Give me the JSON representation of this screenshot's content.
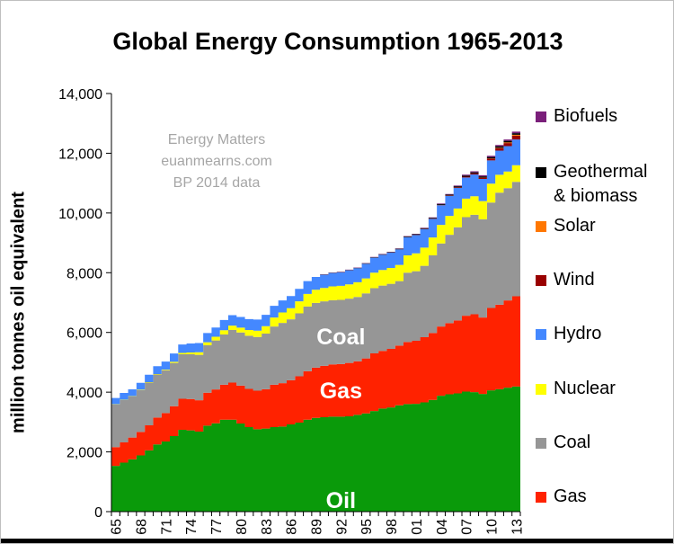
{
  "chart_data": {
    "type": "area",
    "stacked": true,
    "title": "Global Energy Consumption 1965-2013",
    "ylabel": "million tonnes oil equivalent",
    "xlabel": "",
    "ylim": [
      0,
      14000
    ],
    "yticks": [
      0,
      2000,
      4000,
      6000,
      8000,
      10000,
      12000,
      14000
    ],
    "ytick_labels": [
      "0",
      "2,000",
      "4,000",
      "6,000",
      "8,000",
      "10,000",
      "12,000",
      "14,000"
    ],
    "x": [
      1965,
      1966,
      1967,
      1968,
      1969,
      1970,
      1971,
      1972,
      1973,
      1974,
      1975,
      1976,
      1977,
      1978,
      1979,
      1980,
      1981,
      1982,
      1983,
      1984,
      1985,
      1986,
      1987,
      1988,
      1989,
      1990,
      1991,
      1992,
      1993,
      1994,
      1995,
      1996,
      1997,
      1998,
      1999,
      2000,
      2001,
      2002,
      2003,
      2004,
      2005,
      2006,
      2007,
      2008,
      2009,
      2010,
      2011,
      2012,
      2013
    ],
    "xtick_labels": [
      {
        "year": 1965,
        "label": "65"
      },
      {
        "year": 1968,
        "label": "68"
      },
      {
        "year": 1971,
        "label": "71"
      },
      {
        "year": 1974,
        "label": "74"
      },
      {
        "year": 1977,
        "label": "77"
      },
      {
        "year": 1980,
        "label": "80"
      },
      {
        "year": 1983,
        "label": "83"
      },
      {
        "year": 1986,
        "label": "86"
      },
      {
        "year": 1989,
        "label": "89"
      },
      {
        "year": 1992,
        "label": "92"
      },
      {
        "year": 1995,
        "label": "95"
      },
      {
        "year": 1998,
        "label": "98"
      },
      {
        "year": 2001,
        "label": "01"
      },
      {
        "year": 2004,
        "label": "04"
      },
      {
        "year": 2007,
        "label": "07"
      },
      {
        "year": 2010,
        "label": "10"
      },
      {
        "year": 2013,
        "label": "13"
      }
    ],
    "series": [
      {
        "name": "Oil",
        "color": "#0a9a0a",
        "values": [
          1530,
          1640,
          1750,
          1880,
          2050,
          2250,
          2350,
          2530,
          2740,
          2720,
          2680,
          2880,
          2960,
          3080,
          3080,
          2950,
          2830,
          2760,
          2780,
          2830,
          2850,
          2920,
          2980,
          3080,
          3140,
          3160,
          3180,
          3180,
          3190,
          3240,
          3290,
          3370,
          3450,
          3490,
          3560,
          3600,
          3610,
          3660,
          3740,
          3880,
          3930,
          3960,
          4020,
          4000,
          3940,
          4060,
          4100,
          4150,
          4190
        ]
      },
      {
        "name": "Gas",
        "color": "#ff2200",
        "values": [
          630,
          680,
          730,
          790,
          840,
          900,
          950,
          1000,
          1040,
          1050,
          1050,
          1100,
          1130,
          1170,
          1240,
          1270,
          1280,
          1290,
          1320,
          1420,
          1450,
          1480,
          1550,
          1620,
          1680,
          1720,
          1750,
          1760,
          1790,
          1790,
          1840,
          1930,
          1930,
          1960,
          2000,
          2080,
          2110,
          2180,
          2240,
          2320,
          2380,
          2440,
          2540,
          2610,
          2560,
          2760,
          2830,
          2920,
          3020
        ]
      },
      {
        "name": "Coal",
        "color": "#969696",
        "values": [
          1430,
          1420,
          1380,
          1400,
          1430,
          1440,
          1430,
          1450,
          1490,
          1500,
          1520,
          1590,
          1640,
          1680,
          1760,
          1780,
          1780,
          1800,
          1860,
          1950,
          2020,
          2040,
          2110,
          2170,
          2170,
          2160,
          2150,
          2150,
          2150,
          2160,
          2180,
          2180,
          2190,
          2180,
          2160,
          2320,
          2330,
          2390,
          2600,
          2780,
          2960,
          3120,
          3300,
          3330,
          3290,
          3530,
          3750,
          3760,
          3830
        ]
      },
      {
        "name": "Nuclear",
        "color": "#ffff00",
        "values": [
          6,
          8,
          10,
          12,
          15,
          18,
          25,
          35,
          45,
          60,
          85,
          100,
          125,
          145,
          150,
          160,
          190,
          210,
          250,
          300,
          350,
          370,
          400,
          420,
          440,
          450,
          460,
          470,
          480,
          490,
          500,
          520,
          520,
          530,
          540,
          580,
          600,
          610,
          600,
          620,
          630,
          630,
          620,
          620,
          610,
          630,
          600,
          560,
          560
        ]
      },
      {
        "name": "Hydro",
        "color": "#4488ff",
        "values": [
          210,
          225,
          225,
          230,
          250,
          260,
          270,
          280,
          280,
          300,
          310,
          310,
          310,
          340,
          350,
          360,
          365,
          370,
          380,
          390,
          400,
          410,
          420,
          430,
          430,
          440,
          450,
          450,
          470,
          470,
          490,
          500,
          510,
          510,
          520,
          610,
          610,
          620,
          620,
          660,
          670,
          690,
          710,
          730,
          740,
          780,
          810,
          850,
          860
        ]
      },
      {
        "name": "Wind",
        "color": "#990000",
        "values": [
          0,
          0,
          0,
          0,
          0,
          0,
          0,
          0,
          0,
          0,
          0,
          0,
          0,
          0,
          0,
          0,
          0,
          0,
          0,
          0,
          0,
          0,
          0,
          0,
          0,
          1,
          1,
          1,
          1,
          2,
          2,
          2,
          3,
          3,
          4,
          5,
          6,
          8,
          10,
          12,
          15,
          20,
          25,
          30,
          40,
          60,
          80,
          100,
          130
        ]
      },
      {
        "name": "Solar",
        "color": "#ff7700",
        "values": [
          0,
          0,
          0,
          0,
          0,
          0,
          0,
          0,
          0,
          0,
          0,
          0,
          0,
          0,
          0,
          0,
          0,
          0,
          0,
          0,
          0,
          0,
          0,
          0,
          0,
          0,
          0,
          0,
          0,
          0,
          0,
          0,
          0,
          0,
          0,
          0,
          0,
          0,
          0,
          0,
          1,
          2,
          2,
          3,
          5,
          7,
          14,
          22,
          28
        ]
      },
      {
        "name": "Geothermal & biomass",
        "color": "#000000",
        "values": [
          0,
          0,
          0,
          0,
          0,
          0,
          0,
          0,
          0,
          0,
          0,
          0,
          0,
          0,
          0,
          0,
          0,
          0,
          0,
          0,
          0,
          0,
          0,
          0,
          0,
          10,
          10,
          10,
          12,
          12,
          14,
          15,
          15,
          16,
          18,
          20,
          22,
          24,
          26,
          28,
          30,
          32,
          35,
          38,
          40,
          45,
          50,
          52,
          55
        ]
      },
      {
        "name": "Biofuels",
        "color": "#7a1f7a",
        "values": [
          0,
          0,
          0,
          0,
          0,
          0,
          0,
          0,
          0,
          0,
          0,
          0,
          0,
          0,
          0,
          0,
          0,
          0,
          0,
          0,
          0,
          0,
          0,
          0,
          0,
          8,
          8,
          9,
          9,
          10,
          10,
          10,
          11,
          11,
          11,
          12,
          12,
          14,
          16,
          18,
          20,
          24,
          30,
          35,
          38,
          42,
          44,
          46,
          50
        ]
      }
    ],
    "in_chart_labels": [
      {
        "series": "Coal",
        "text": "Coal"
      },
      {
        "series": "Gas",
        "text": "Gas"
      },
      {
        "series": "Oil",
        "text": "Oil"
      }
    ],
    "legend": {
      "placement": "right",
      "items": [
        {
          "label": "Biofuels",
          "color": "#7a1f7a"
        },
        {
          "label": "Geothermal\n& biomass",
          "color": "#000000"
        },
        {
          "label": "Solar",
          "color": "#ff7700"
        },
        {
          "label": "Wind",
          "color": "#990000"
        },
        {
          "label": "Hydro",
          "color": "#4488ff"
        },
        {
          "label": "Nuclear",
          "color": "#ffff00"
        },
        {
          "label": "Coal",
          "color": "#969696"
        },
        {
          "label": "Gas",
          "color": "#ff2200"
        }
      ]
    },
    "watermark": [
      "Energy Matters",
      "euanmearns.com",
      "BP 2014 data"
    ],
    "grid": false
  }
}
